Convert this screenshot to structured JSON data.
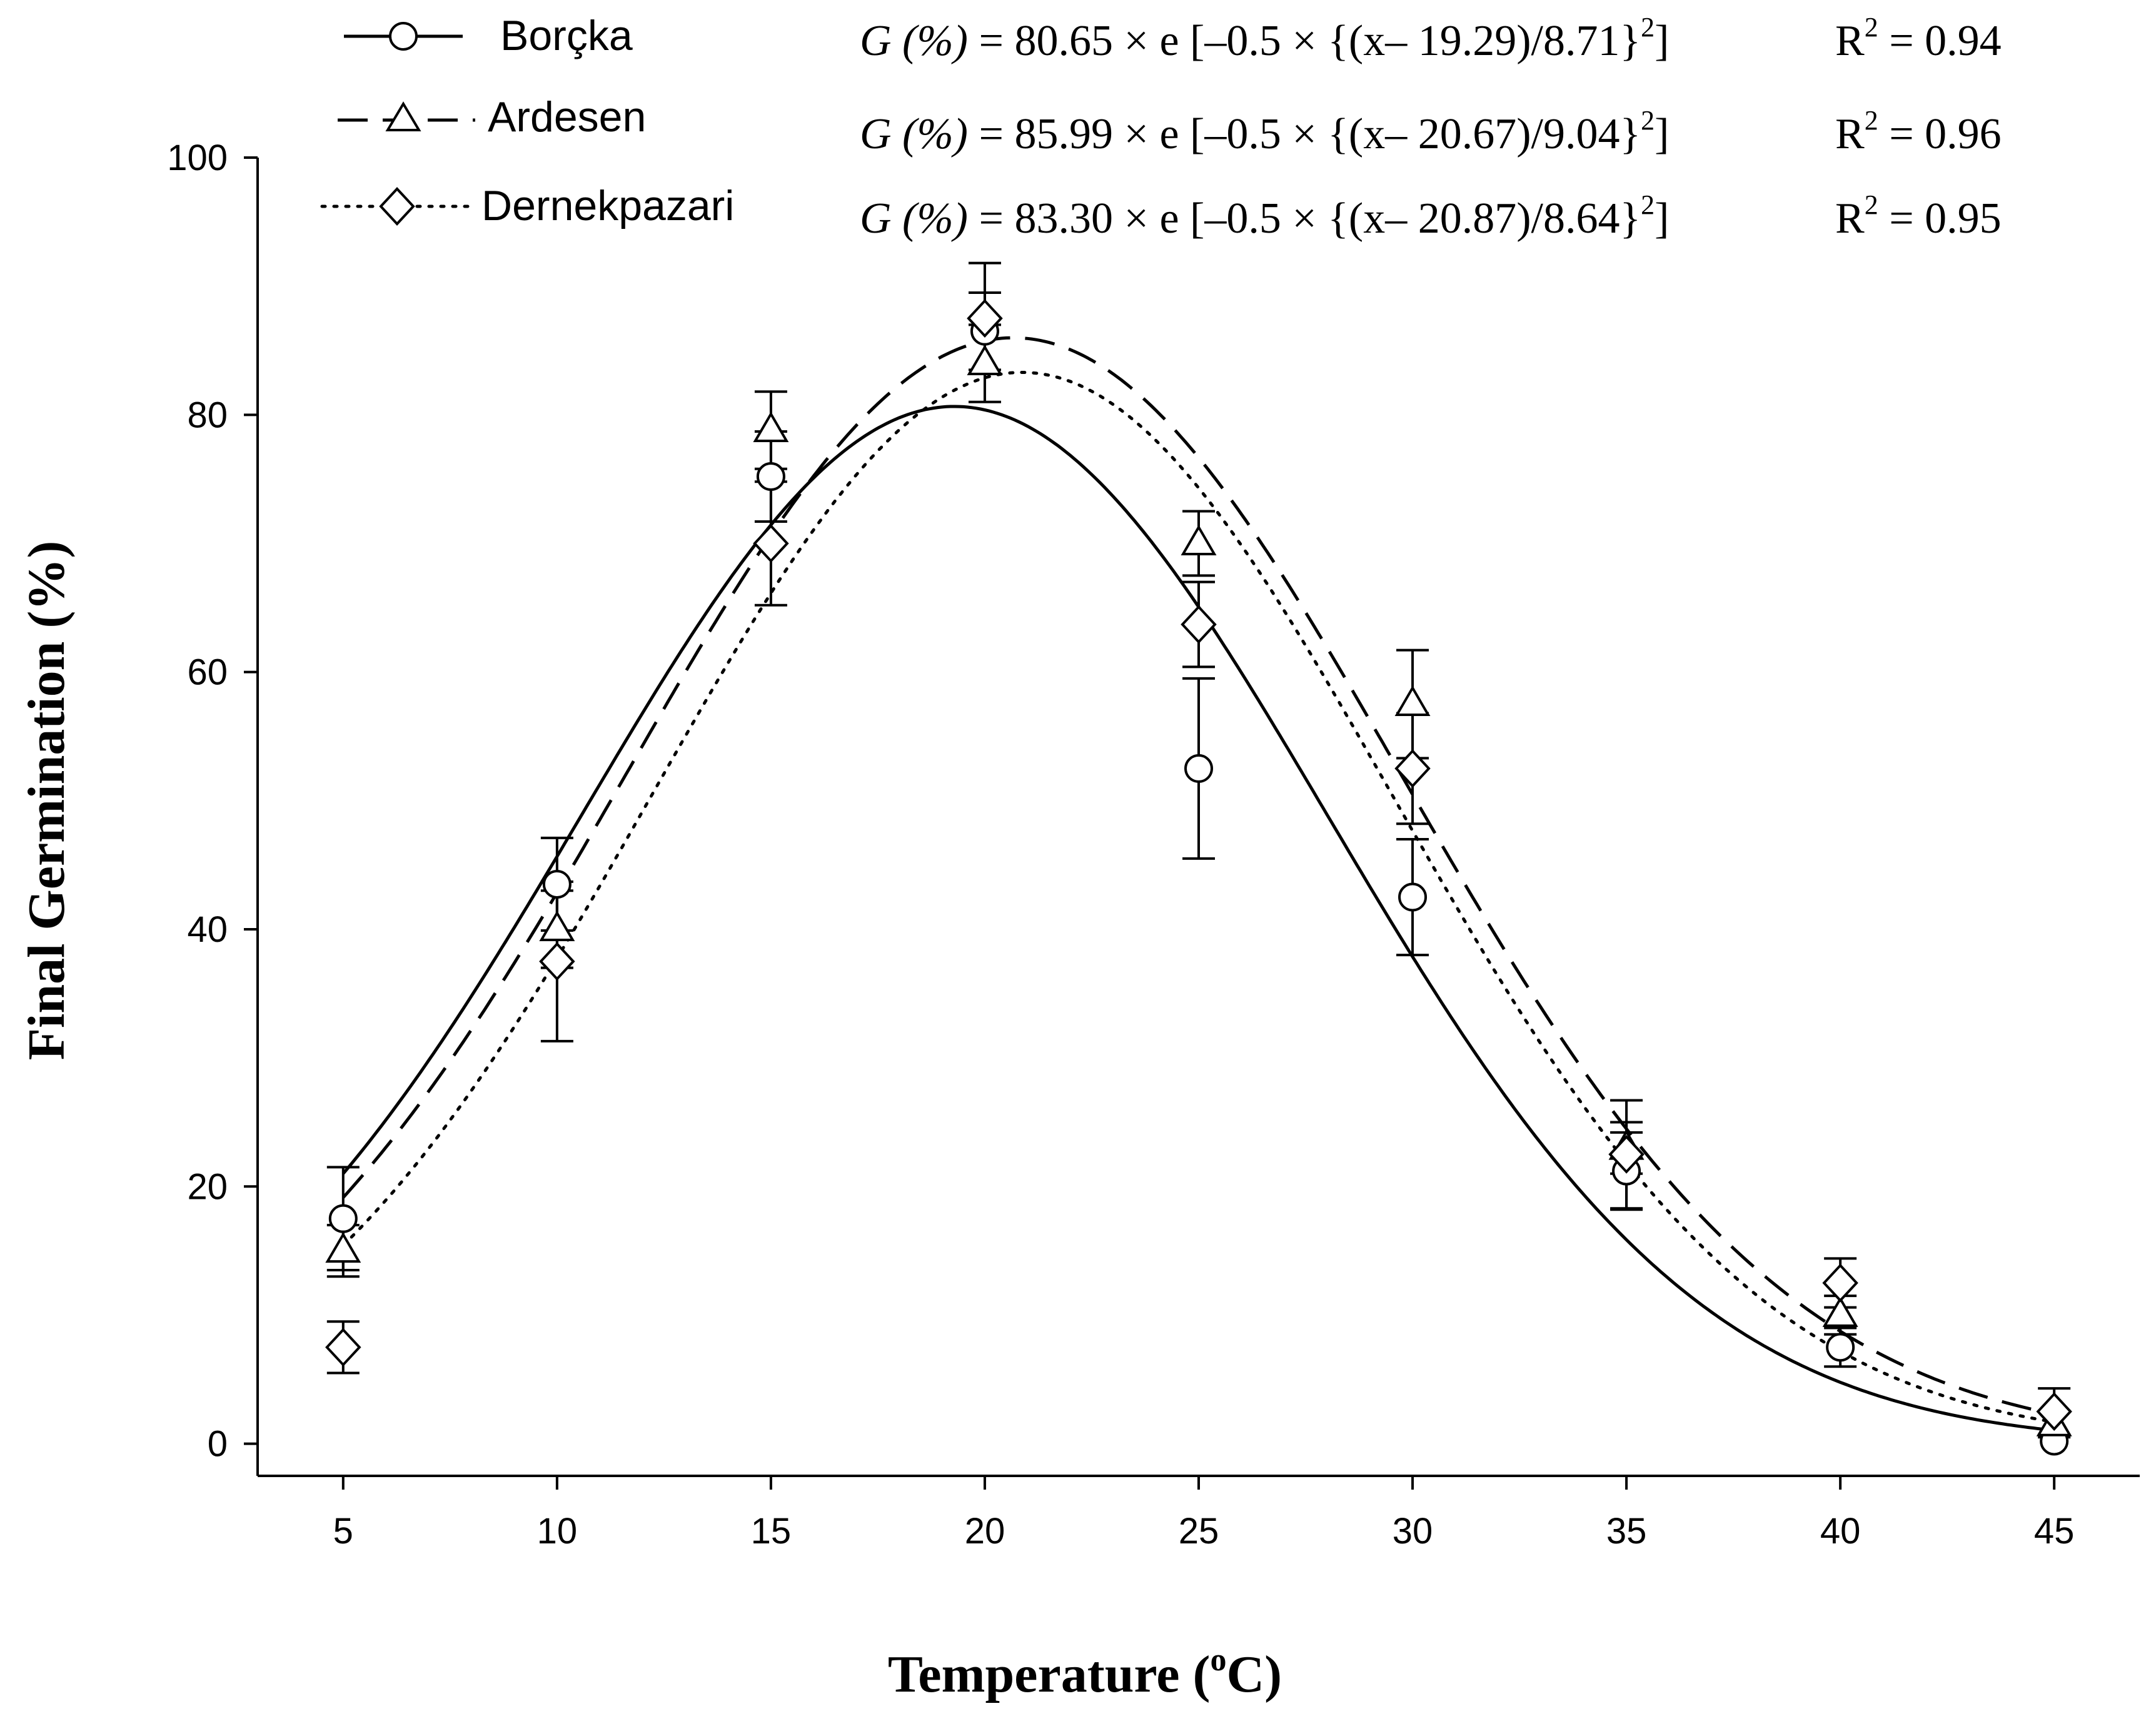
{
  "chart_data": {
    "type": "scatter",
    "xlabel": "Temperature (",
    "xlabel_sup": "o",
    "xlabel_suffix": "C)",
    "ylabel": "Final Germination (%)",
    "xlim": [
      3,
      47
    ],
    "ylim": [
      -2.5,
      100
    ],
    "x_ticks": [
      5,
      10,
      15,
      20,
      25,
      30,
      35,
      40,
      45
    ],
    "y_ticks": [
      0,
      20,
      40,
      60,
      80,
      100
    ],
    "legend_position": "top-left",
    "series": [
      {
        "name": "Borçka",
        "marker": "circle",
        "line_style": "solid",
        "x": [
          5,
          10,
          15,
          20,
          25,
          30,
          35,
          40,
          45
        ],
        "y": [
          17.5,
          43.5,
          75.2,
          86.5,
          52.5,
          42.5,
          21.2,
          7.5,
          0.2
        ],
        "err_upper": [
          4.0,
          3.6,
          3.5,
          3.0,
          7.0,
          4.5,
          3.0,
          1.5,
          0
        ],
        "err_lower": [
          4.0,
          3.6,
          3.5,
          3.0,
          7.0,
          4.5,
          3.0,
          1.5,
          0
        ],
        "fit": {
          "a": 80.65,
          "mu": 19.29,
          "sigma": 8.71
        },
        "equation": {
          "prefix": "G (%)",
          "body": " = 80.65 × e [–0.5 × {(x– 19.29)/8.71}",
          "exp": "2",
          "close": "]",
          "r2_label": "R",
          "r2_sup": "2",
          "r2_value": " = 0.94"
        }
      },
      {
        "name": "Ardesen",
        "marker": "triangle",
        "line_style": "dashed",
        "x": [
          5,
          10,
          15,
          20,
          25,
          30,
          35,
          40,
          45
        ],
        "y": [
          15.0,
          40.0,
          78.8,
          84.0,
          70.0,
          57.5,
          23.0,
          10.0,
          1.5
        ],
        "err_upper": [
          2.0,
          3.0,
          3.0,
          3.0,
          2.5,
          4.2,
          2.0,
          1.5,
          1.0
        ],
        "err_lower": [
          2.0,
          3.0,
          3.0,
          3.0,
          2.5,
          4.2,
          2.0,
          1.5,
          1.0
        ],
        "fit": {
          "a": 85.99,
          "mu": 20.67,
          "sigma": 9.04
        },
        "equation": {
          "prefix": "G (%)",
          "body": " = 85.99 × e [–0.5 × {(x– 20.67)/9.04}",
          "exp": "2",
          "close": "]",
          "r2_label": "R",
          "r2_sup": "2",
          "r2_value": " = 0.96"
        }
      },
      {
        "name": "Dernekpazari",
        "marker": "diamond",
        "line_style": "dotted",
        "x": [
          5,
          10,
          15,
          20,
          25,
          30,
          35,
          40,
          45
        ],
        "y": [
          7.5,
          37.5,
          70.0,
          87.5,
          63.7,
          52.5,
          22.5,
          12.5,
          2.5
        ],
        "err_upper": [
          2.0,
          6.2,
          4.8,
          4.3,
          3.3,
          4.3,
          4.2,
          1.9,
          1.8
        ],
        "err_lower": [
          2.0,
          6.2,
          4.8,
          4.3,
          3.3,
          4.3,
          4.2,
          1.9,
          1.8
        ],
        "fit": {
          "a": 83.3,
          "mu": 20.87,
          "sigma": 8.64
        },
        "equation": {
          "prefix": "G (%)",
          "body": " = 83.30 × e [–0.5 × {(x– 20.87)/8.64}",
          "exp": "2",
          "close": "]",
          "r2_label": "R",
          "r2_sup": "2",
          "r2_value": " = 0.95"
        }
      }
    ]
  }
}
